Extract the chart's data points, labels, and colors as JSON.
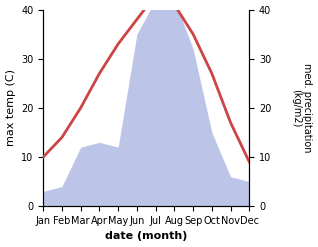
{
  "months": [
    "Jan",
    "Feb",
    "Mar",
    "Apr",
    "May",
    "Jun",
    "Jul",
    "Aug",
    "Sep",
    "Oct",
    "Nov",
    "Dec"
  ],
  "temperature": [
    10,
    14,
    20,
    27,
    33,
    38,
    43,
    41,
    35,
    27,
    17,
    9
  ],
  "precipitation": [
    3,
    4,
    12,
    13,
    12,
    35,
    42,
    42,
    32,
    15,
    6,
    5
  ],
  "temp_color": "#cc4444",
  "precip_fill_color": "#bcc5e8",
  "left_ylabel": "max temp (C)",
  "right_ylabel": "med. precipitation\n(kg/m2)",
  "xlabel": "date (month)",
  "ylim_left": [
    0,
    40
  ],
  "ylim_right": [
    0,
    40
  ],
  "left_yticks": [
    0,
    10,
    20,
    30,
    40
  ],
  "right_yticks": [
    0,
    10,
    20,
    30,
    40
  ],
  "temp_linewidth": 2.0
}
